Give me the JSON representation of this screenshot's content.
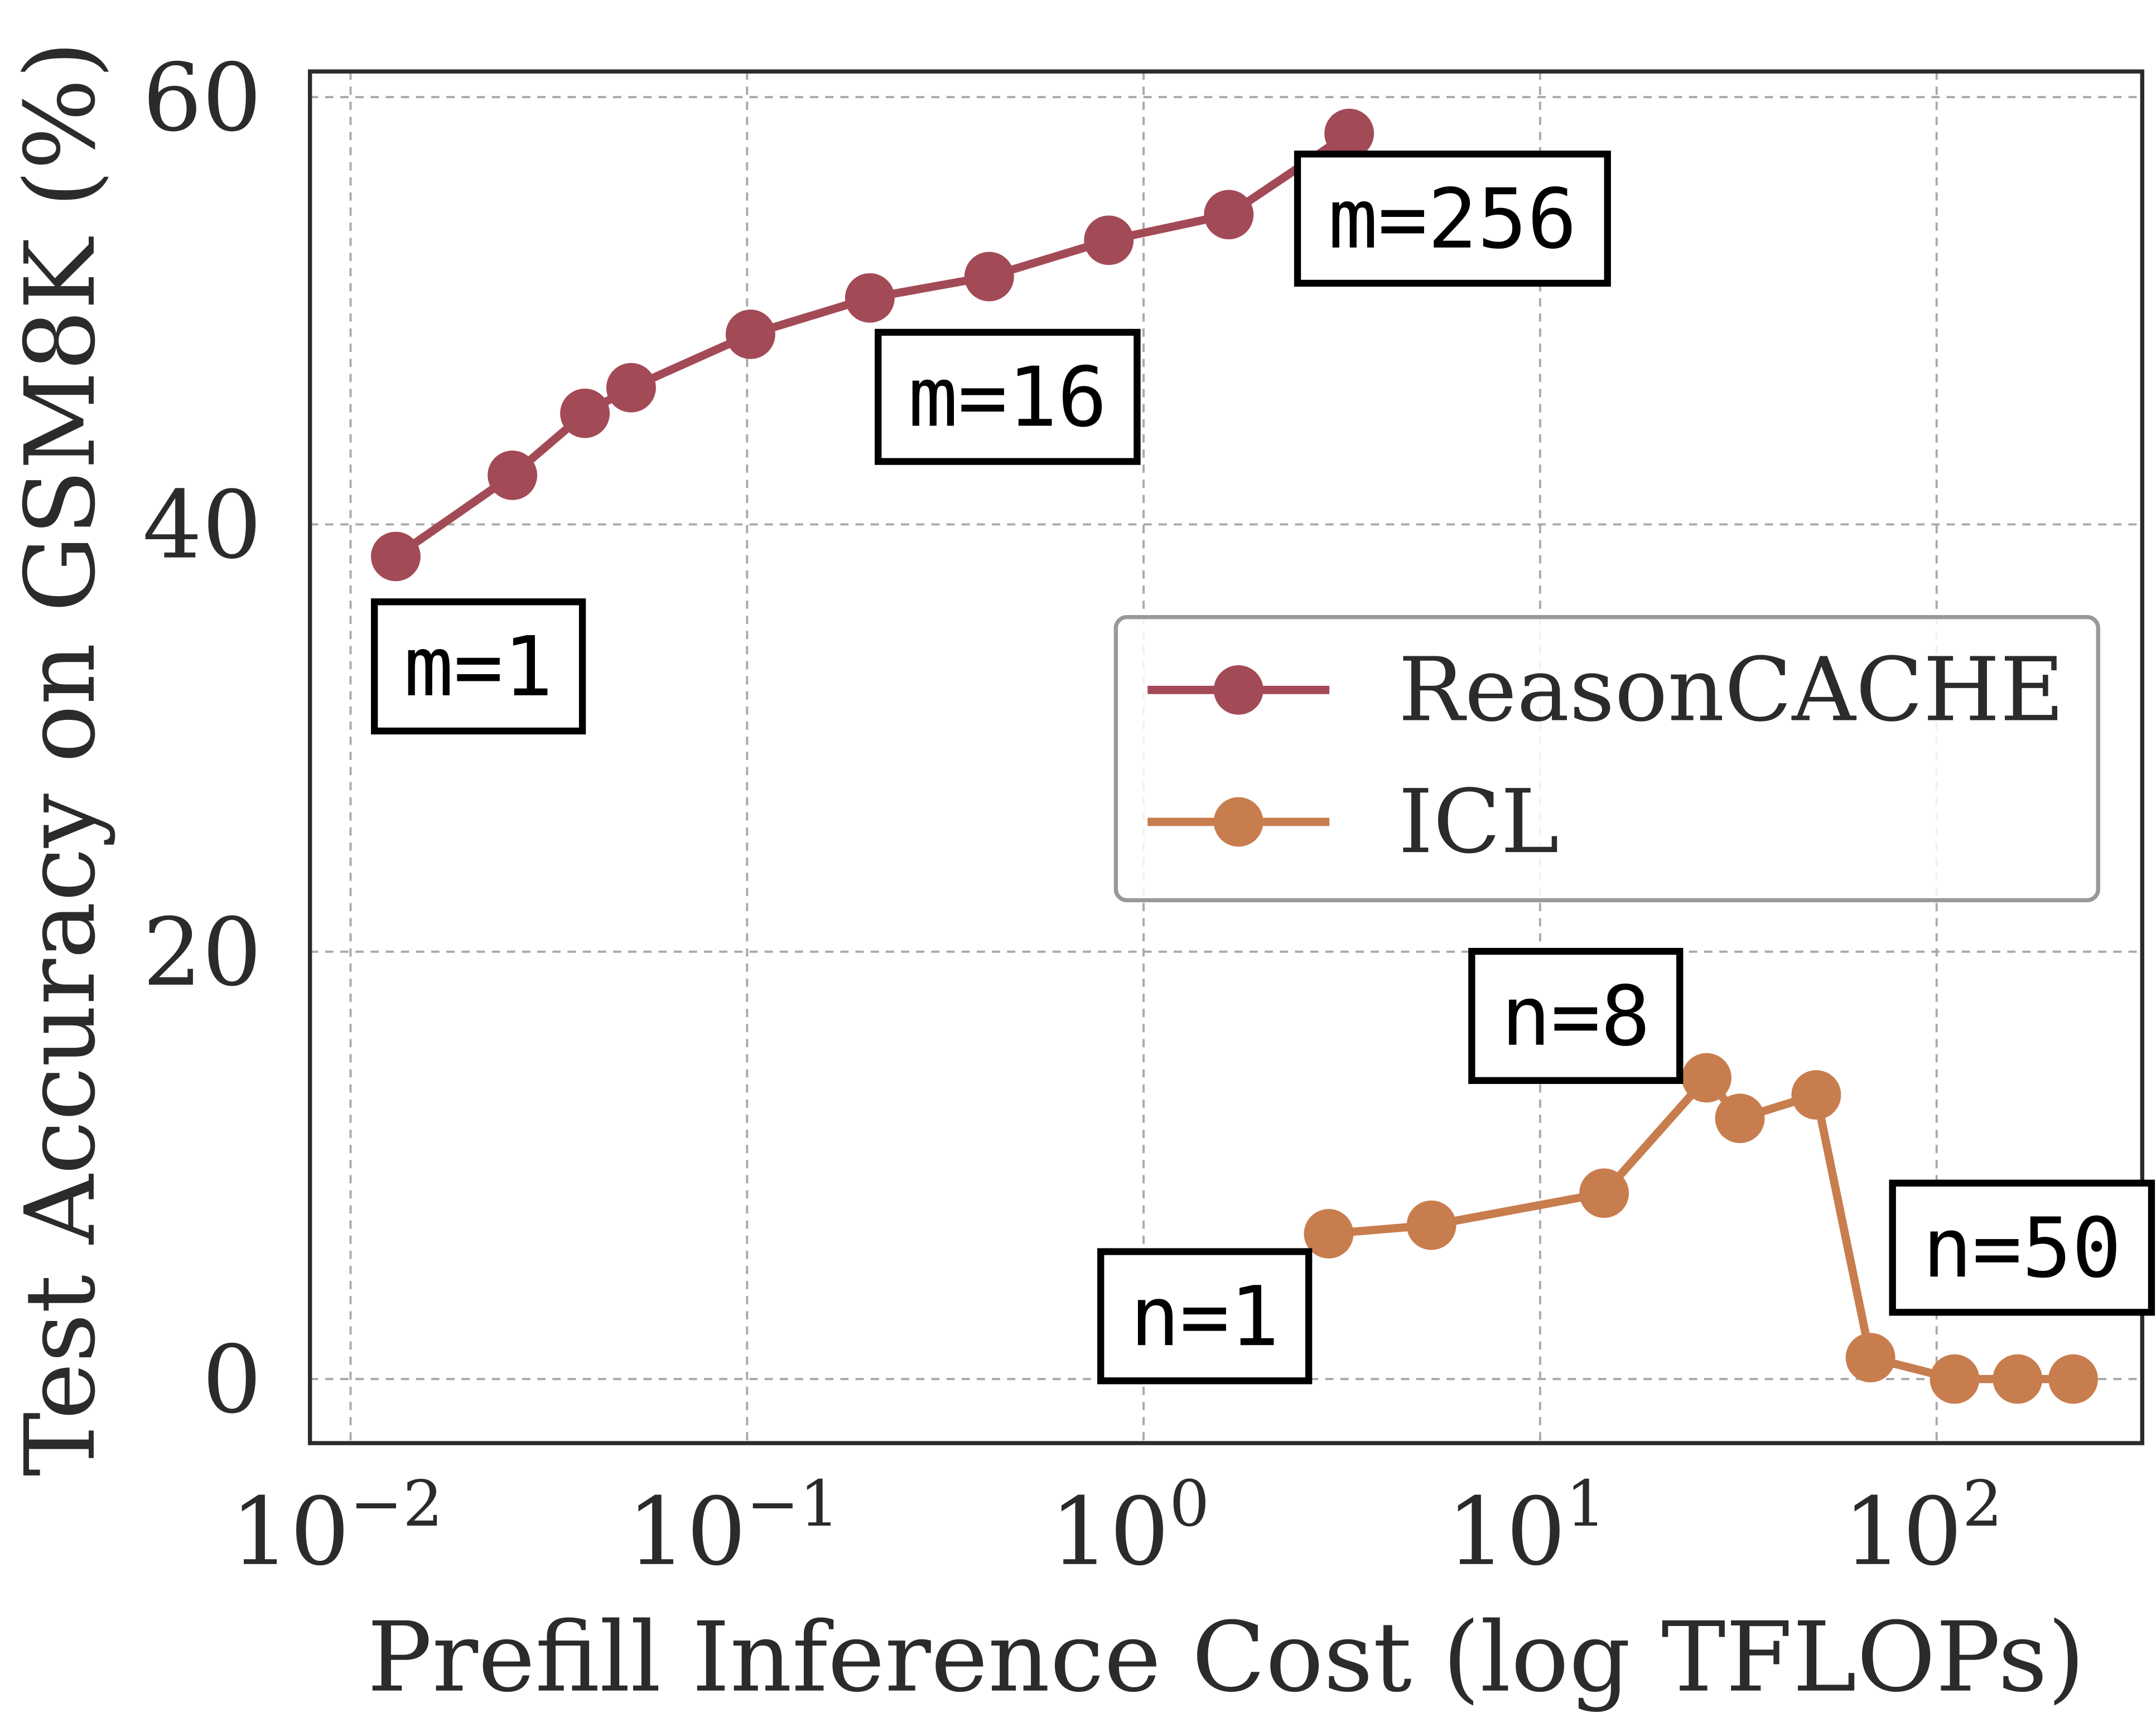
{
  "chart_data": {
    "type": "line",
    "title": "",
    "xlabel": "Prefill Inference Cost (log TFLOPs)",
    "ylabel": "Test Accuracy on GSM8K (%)",
    "xscale": "log",
    "xlim": [
      0.0079,
      330
    ],
    "ylim": [
      -3,
      61.2
    ],
    "grid": true,
    "x_ticks": [
      {
        "value": 0.01,
        "base": "10",
        "exp": "−2"
      },
      {
        "value": 0.1,
        "base": "10",
        "exp": "−1"
      },
      {
        "value": 1,
        "base": "10",
        "exp": "0"
      },
      {
        "value": 10,
        "base": "10",
        "exp": "1"
      },
      {
        "value": 100,
        "base": "10",
        "exp": "2"
      }
    ],
    "y_ticks": [
      0,
      20,
      40,
      60
    ],
    "legend_position": "center-right",
    "series": [
      {
        "name": "ReasonCACHE",
        "color": "#a34a57",
        "x": [
          0.013,
          0.0256,
          0.039,
          0.051,
          0.102,
          0.204,
          0.408,
          0.817,
          1.64,
          3.3
        ],
        "y": [
          38.5,
          42.3,
          45.2,
          46.4,
          48.9,
          50.6,
          51.6,
          53.3,
          54.5,
          58.3
        ]
      },
      {
        "name": "ICL",
        "color": "#c87d4e",
        "x": [
          2.93,
          5.32,
          14.5,
          26.3,
          31.9,
          49.7,
          68.1,
          111,
          160,
          221
        ],
        "y": [
          6.8,
          7.2,
          8.7,
          14.1,
          12.2,
          13.3,
          1.0,
          0.0,
          0.0,
          0.0
        ]
      }
    ],
    "annotations": [
      {
        "text": "m=1",
        "series": "ReasonCACHE",
        "x": 0.013,
        "y": 38.5
      },
      {
        "text": "m=16",
        "series": "ReasonCACHE",
        "x": 0.204,
        "y": 50.6
      },
      {
        "text": "m=256",
        "series": "ReasonCACHE",
        "x": 3.3,
        "y": 58.3
      },
      {
        "text": "n=1",
        "series": "ICL",
        "x": 2.93,
        "y": 6.8
      },
      {
        "text": "n=8",
        "series": "ICL",
        "x": 26.3,
        "y": 14.1
      },
      {
        "text": "n=50",
        "series": "ICL",
        "x": 68.1,
        "y": 1.0
      }
    ]
  }
}
